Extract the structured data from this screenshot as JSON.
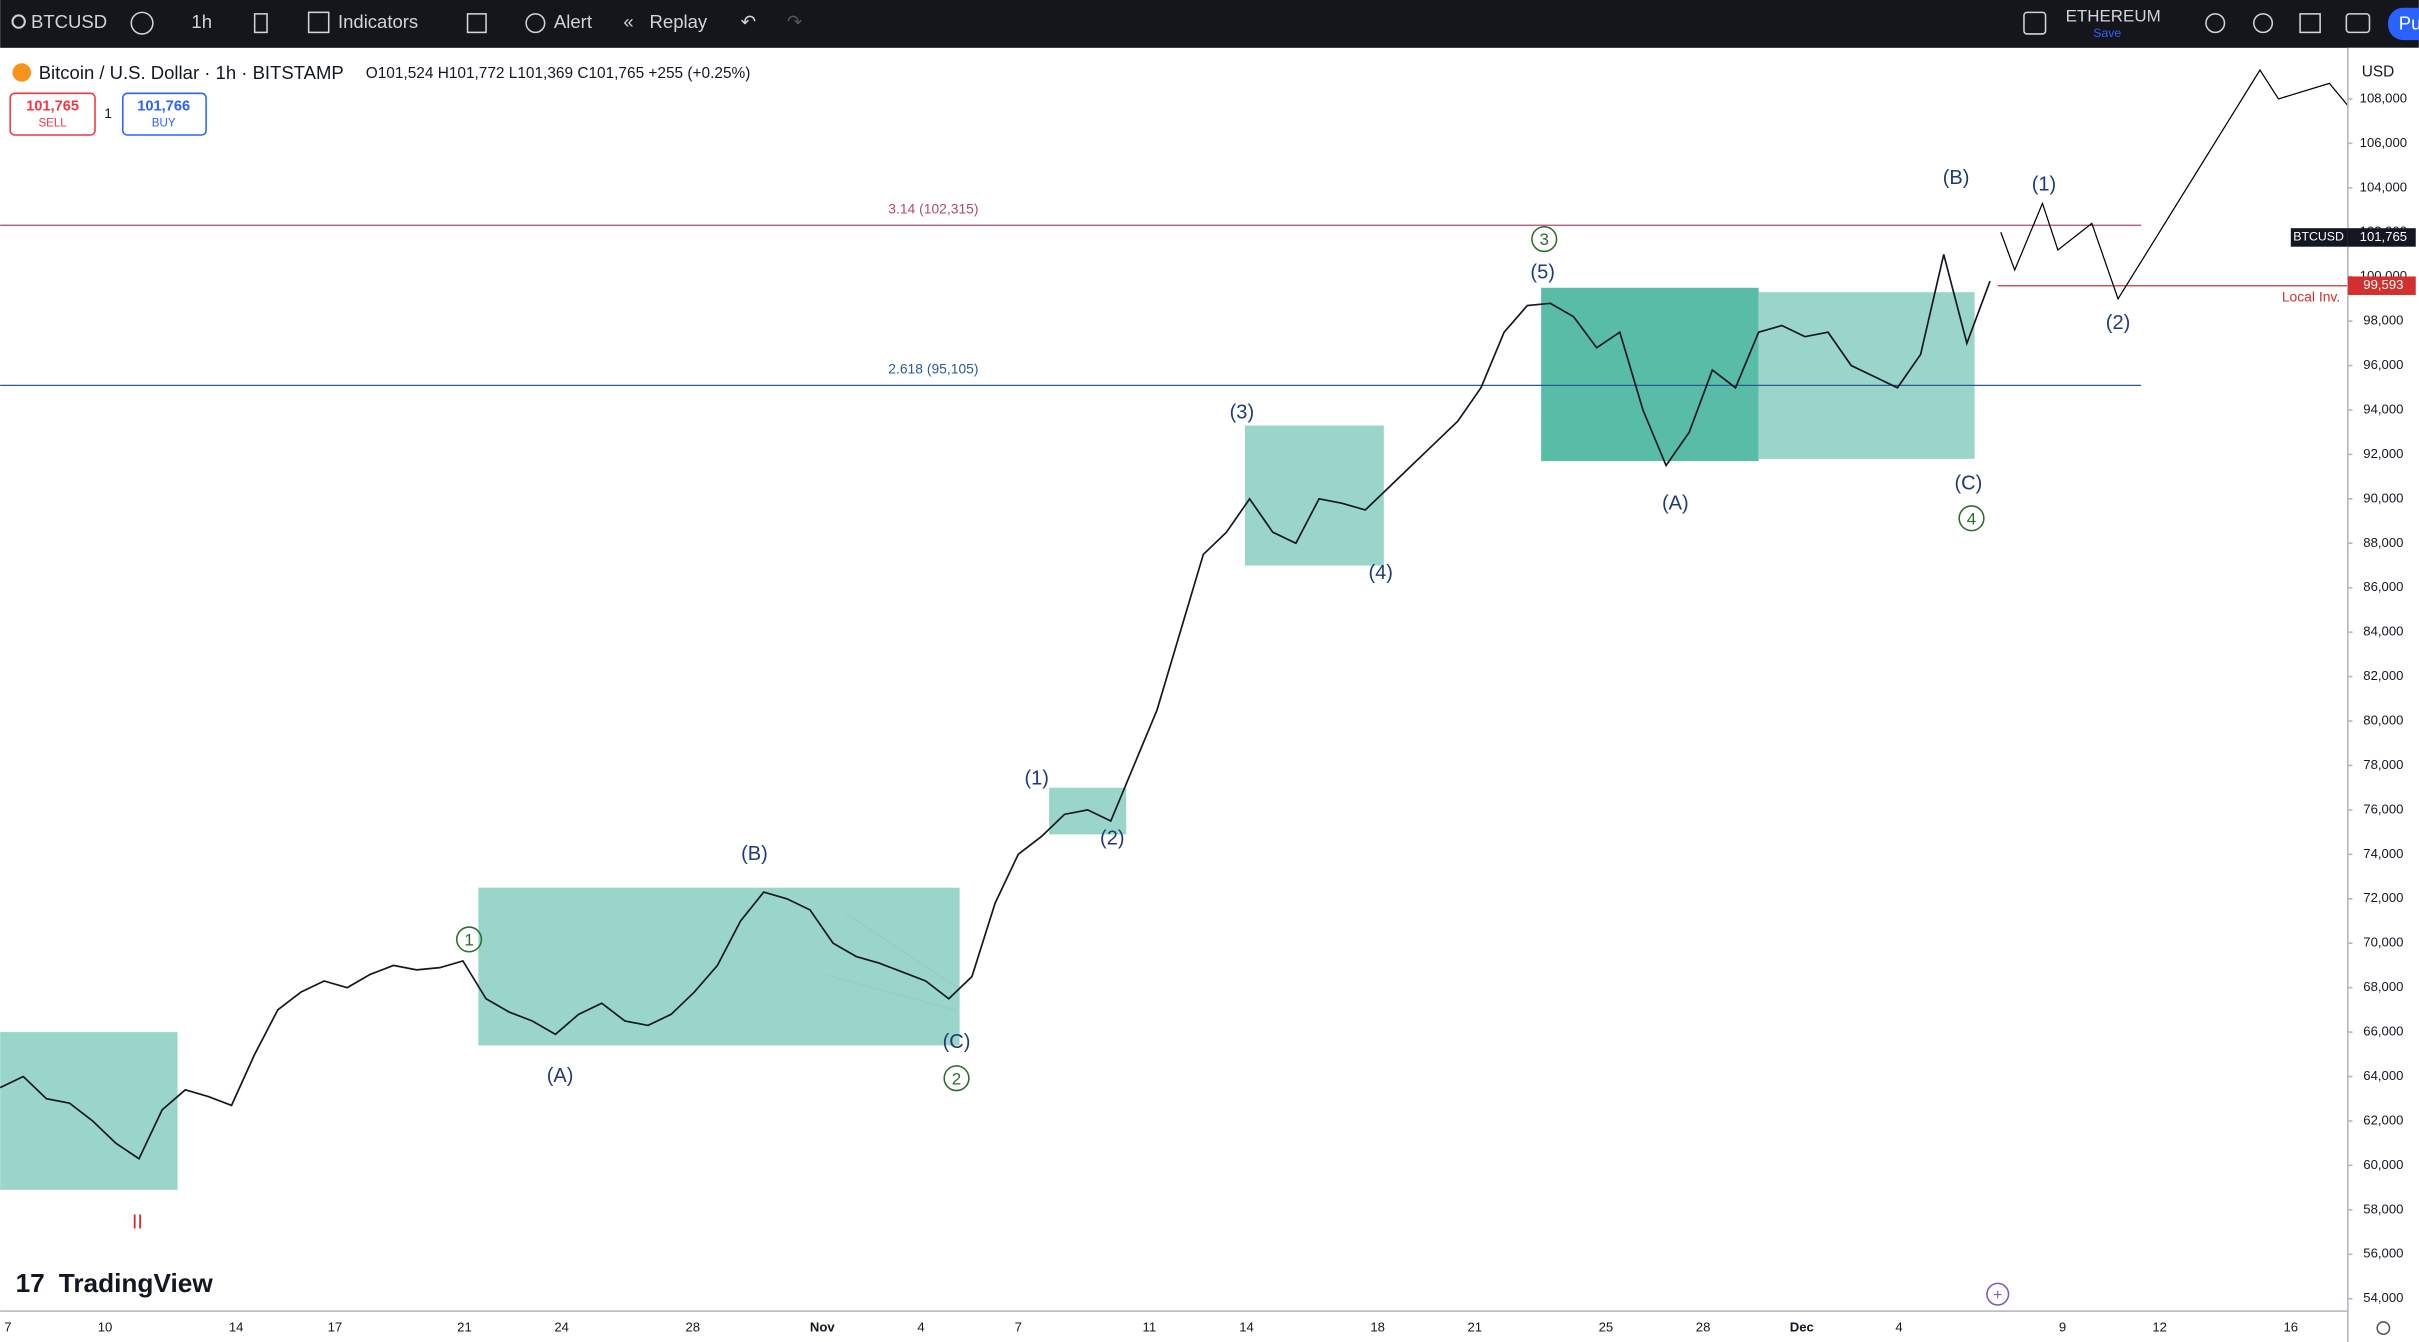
{
  "toolbar": {
    "symbol": "BTCUSD",
    "interval": "1h",
    "indicators": "Indicators",
    "alert": "Alert",
    "replay": "Replay",
    "layout_name": "ETHEREUM",
    "layout_status": "Save",
    "publish": "Pu"
  },
  "header": {
    "title": "Bitcoin / U.S. Dollar · 1h · BITSTAMP",
    "ohlc": "O101,524 H101,772 L101,369 C101,765 +255 (+0.25%)",
    "sell_price": "101,765",
    "sell": "SELL",
    "quantity": "1",
    "buy_price": "101,766",
    "buy": "BUY"
  },
  "chart_data": {
    "type": "line",
    "currency": "USD",
    "watermark": "TradingView",
    "color": "#131722",
    "values": [
      63500,
      64000,
      63000,
      62800,
      62000,
      61000,
      60300,
      62500,
      63400,
      63100,
      62700,
      65000,
      67000,
      67800,
      68300,
      68000,
      68600,
      69000,
      68800,
      68900,
      69200,
      67500,
      66900,
      66500,
      65900,
      66800,
      67300,
      66500,
      66300,
      66800,
      67800,
      69000,
      71000,
      72300,
      72000,
      71500,
      70000,
      69400,
      69100,
      68700,
      68300,
      67500,
      68500,
      71800,
      74000,
      74800,
      75800,
      76000,
      75500,
      78000,
      80500,
      84000,
      87500,
      88500,
      90000,
      88500,
      88000,
      90000,
      89800,
      89500,
      90500,
      91500,
      92500,
      93500,
      95000,
      97500,
      98700,
      98800,
      98200,
      96800,
      97500,
      94000,
      91500,
      93000,
      95800,
      95000,
      97500,
      97800,
      97300,
      97500,
      96000,
      95500,
      95000,
      96500,
      101000,
      97000,
      99800
    ],
    "projection": {
      "color": "#000000",
      "values": [
        102000,
        100300,
        103300,
        101200,
        102400,
        99000,
        109300,
        108000,
        108700,
        107700
      ]
    },
    "xticks": [
      "7",
      "10",
      "14",
      "17",
      "21",
      "24",
      "28",
      "Nov",
      "4",
      "7",
      "11",
      "14",
      "18",
      "21",
      "25",
      "28",
      "Dec",
      "4",
      "9",
      "12",
      "16"
    ],
    "ylim": [
      53440,
      110300
    ],
    "yticks": [
      {
        "value": 54000,
        "label": "54,000"
      },
      {
        "value": 56000,
        "label": "56,000"
      },
      {
        "value": 58000,
        "label": "58,000"
      },
      {
        "value": 60000,
        "label": "60,000"
      },
      {
        "value": 62000,
        "label": "62,000"
      },
      {
        "value": 64000,
        "label": "64,000"
      },
      {
        "value": 66000,
        "label": "66,000"
      },
      {
        "value": 68000,
        "label": "68,000"
      },
      {
        "value": 70000,
        "label": "70,000"
      },
      {
        "value": 72000,
        "label": "72,000"
      },
      {
        "value": 74000,
        "label": "74,000"
      },
      {
        "value": 76000,
        "label": "76,000"
      },
      {
        "value": 78000,
        "label": "78,000"
      },
      {
        "value": 80000,
        "label": "80,000"
      },
      {
        "value": 82000,
        "label": "82,000"
      },
      {
        "value": 84000,
        "label": "84,000"
      },
      {
        "value": 86000,
        "label": "86,000"
      },
      {
        "value": 88000,
        "label": "88,000"
      },
      {
        "value": 90000,
        "label": "90,000"
      },
      {
        "value": 92000,
        "label": "92,000"
      },
      {
        "value": 94000,
        "label": "94,000"
      },
      {
        "value": 96000,
        "label": "96,000"
      },
      {
        "value": 98000,
        "label": "98,000"
      },
      {
        "value": 100000,
        "label": "100,000"
      },
      {
        "value": 102000,
        "label": "102,000"
      },
      {
        "value": 104000,
        "label": "104,000"
      },
      {
        "value": 106000,
        "label": "106,000"
      },
      {
        "value": 108000,
        "label": "108,000"
      }
    ],
    "last_price": {
      "name": "BTCUSD",
      "value": 101765,
      "label": "101,765"
    },
    "levels": [
      {
        "value": 102315,
        "label": "3.14 (102,315)",
        "color": "#b2476e"
      },
      {
        "value": 95105,
        "label": "2.618 (95,105)",
        "color": "#2a5a9a"
      }
    ],
    "invalidation": {
      "value": 99593,
      "label": "99,593",
      "text": "Local Inv.",
      "color": "#d32f2f"
    },
    "boxes": [
      {
        "top": 66000,
        "bottom": 58900,
        "color": "#93d4c6"
      },
      {
        "top": 72500,
        "bottom": 65400,
        "color": "#93d4c6"
      },
      {
        "top": 77000,
        "bottom": 74900,
        "color": "#93d4c6"
      },
      {
        "top": 93300,
        "bottom": 87000,
        "color": "#93d4c6"
      },
      {
        "top": 99500,
        "bottom": 91700,
        "color": "#4fb8a2"
      },
      {
        "top": 99300,
        "bottom": 91800,
        "color": "#93d4c6"
      }
    ],
    "annotations": [
      {
        "text": "(A)",
        "color": "#1f3b73",
        "circled": false
      },
      {
        "text": "(B)",
        "color": "#1f3b73",
        "circled": false
      },
      {
        "text": "(C)",
        "color": "#1f3b73",
        "circled": false
      },
      {
        "text": "1",
        "color": "#2e6b2e",
        "circled": true
      },
      {
        "text": "2",
        "color": "#2e6b2e",
        "circled": true
      },
      {
        "text": "(1)",
        "color": "#1f3b73",
        "circled": false
      },
      {
        "text": "(2)",
        "color": "#1f3b73",
        "circled": false
      },
      {
        "text": "(3)",
        "color": "#1f3b73",
        "circled": false
      },
      {
        "text": "(4)",
        "color": "#1f3b73",
        "circled": false
      },
      {
        "text": "3",
        "color": "#2e6b2e",
        "circled": true
      },
      {
        "text": "(5)",
        "color": "#1f3b73",
        "circled": false
      },
      {
        "text": "(A)",
        "color": "#1f3b73",
        "circled": false
      },
      {
        "text": "(B)",
        "color": "#1f3b73",
        "circled": false
      },
      {
        "text": "(C)",
        "color": "#1f3b73",
        "circled": false
      },
      {
        "text": "4",
        "color": "#2e6b2e",
        "circled": true
      },
      {
        "text": "(1)",
        "color": "#1f3b73",
        "circled": false
      },
      {
        "text": "(2)",
        "color": "#1f3b73",
        "circled": false
      },
      {
        "text": "II",
        "color": "#d32f2f",
        "circled": false
      }
    ]
  }
}
